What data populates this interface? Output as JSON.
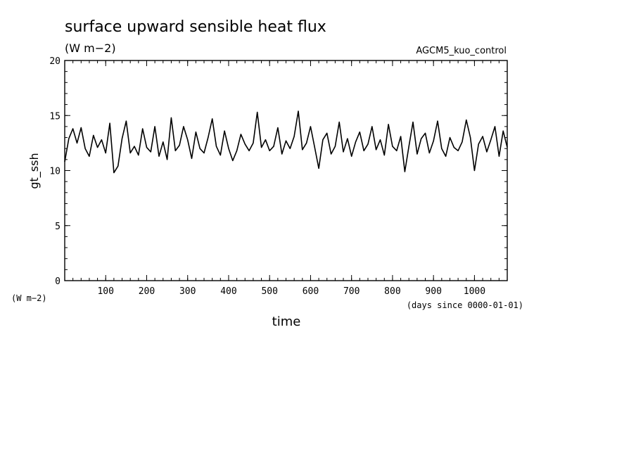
{
  "chart_data": {
    "type": "line",
    "title": "surface upward sensible heat flux",
    "title_units": "(W m−2)",
    "run_label": "AGCM5_kuo_control",
    "xlabel": "time",
    "x_units": "(days since 0000-01-01)",
    "ylabel": "gt_ssh",
    "y_units": "(W m−2)",
    "xlim": [
      0,
      1080
    ],
    "ylim": [
      0,
      20
    ],
    "x_ticks": [
      100,
      200,
      300,
      400,
      500,
      600,
      700,
      800,
      900,
      1000
    ],
    "y_ticks": [
      0,
      5,
      10,
      15,
      20
    ],
    "grid": false,
    "legend": "none",
    "line_color": "#000000",
    "series": [
      {
        "x": [
          0,
          10,
          20,
          30,
          40,
          50,
          60,
          70,
          80,
          90,
          100,
          110,
          120,
          130,
          140,
          150,
          160,
          170,
          180,
          190,
          200,
          210,
          220,
          230,
          240,
          250,
          260,
          270,
          280,
          290,
          300,
          310,
          320,
          330,
          340,
          350,
          360,
          370,
          380,
          390,
          400,
          410,
          420,
          430,
          440,
          450,
          460,
          470,
          480,
          490,
          500,
          510,
          520,
          530,
          540,
          550,
          560,
          570,
          580,
          590,
          600,
          610,
          620,
          630,
          640,
          650,
          660,
          670,
          680,
          690,
          700,
          710,
          720,
          730,
          740,
          750,
          760,
          770,
          780,
          790,
          800,
          810,
          820,
          830,
          840,
          850,
          860,
          870,
          880,
          890,
          900,
          910,
          920,
          930,
          940,
          950,
          960,
          970,
          980,
          990,
          1000,
          1010,
          1020,
          1030,
          1040,
          1050,
          1060,
          1070,
          1080
        ],
        "y": [
          10.8,
          12.9,
          13.8,
          12.5,
          13.9,
          12.0,
          11.3,
          13.2,
          12.1,
          12.8,
          11.6,
          14.3,
          9.8,
          10.4,
          12.9,
          14.5,
          11.6,
          12.2,
          11.4,
          13.8,
          12.1,
          11.7,
          14.0,
          11.3,
          12.6,
          11.0,
          14.8,
          11.8,
          12.3,
          14.0,
          12.8,
          11.1,
          13.5,
          12.0,
          11.6,
          13.0,
          14.7,
          12.2,
          11.4,
          13.6,
          12.0,
          10.9,
          11.8,
          13.3,
          12.4,
          11.8,
          12.5,
          15.3,
          12.1,
          12.8,
          11.8,
          12.2,
          13.9,
          11.5,
          12.7,
          12.0,
          13.1,
          15.4,
          11.9,
          12.5,
          14.0,
          12.1,
          10.2,
          12.8,
          13.4,
          11.5,
          12.2,
          14.4,
          11.7,
          12.9,
          11.3,
          12.6,
          13.5,
          11.8,
          12.4,
          14.0,
          11.9,
          12.8,
          11.4,
          14.2,
          12.2,
          11.8,
          13.1,
          9.9,
          12.2,
          14.4,
          11.5,
          12.9,
          13.4,
          11.6,
          12.7,
          14.5,
          12.0,
          11.3,
          13.0,
          12.1,
          11.8,
          12.6,
          14.6,
          13.0,
          10.0,
          12.4,
          13.1,
          11.7,
          12.8,
          14.0,
          11.3,
          13.6,
          12.1
        ]
      }
    ]
  }
}
